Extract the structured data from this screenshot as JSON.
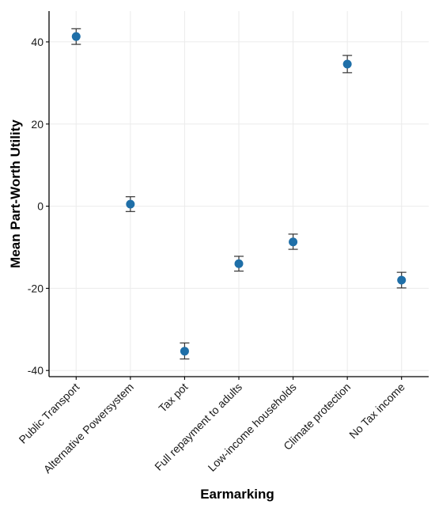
{
  "chart_data": {
    "type": "scatter",
    "title": "",
    "xlabel": "Earmarking",
    "ylabel": "Mean Part-Worth Utility",
    "categories": [
      "Public Transport",
      "Alternative Powersystem",
      "Tax pot",
      "Full repayment to adults",
      "Low-income households",
      "Climate protection",
      "No Tax income"
    ],
    "series": [
      {
        "values": [
          41.3,
          0.5,
          -35.3,
          -14.0,
          -8.7,
          34.6,
          -18.0
        ],
        "error_low": [
          39.4,
          -1.3,
          -37.2,
          -15.8,
          -10.5,
          32.5,
          -19.9
        ],
        "error_high": [
          43.2,
          2.3,
          -33.3,
          -12.2,
          -6.8,
          36.7,
          -16.1
        ]
      }
    ],
    "ylim": [
      -41.5,
      47.5
    ],
    "yticks": [
      -40,
      -20,
      0,
      20,
      40
    ],
    "ytick_labels": [
      "-40",
      "-20",
      "0",
      "20",
      "40"
    ],
    "grid": true,
    "legend": "none",
    "colors": {
      "point": "#1f6fa8",
      "error_bar": "#333333",
      "grid": "#ebebeb",
      "axis": "#000000"
    }
  }
}
